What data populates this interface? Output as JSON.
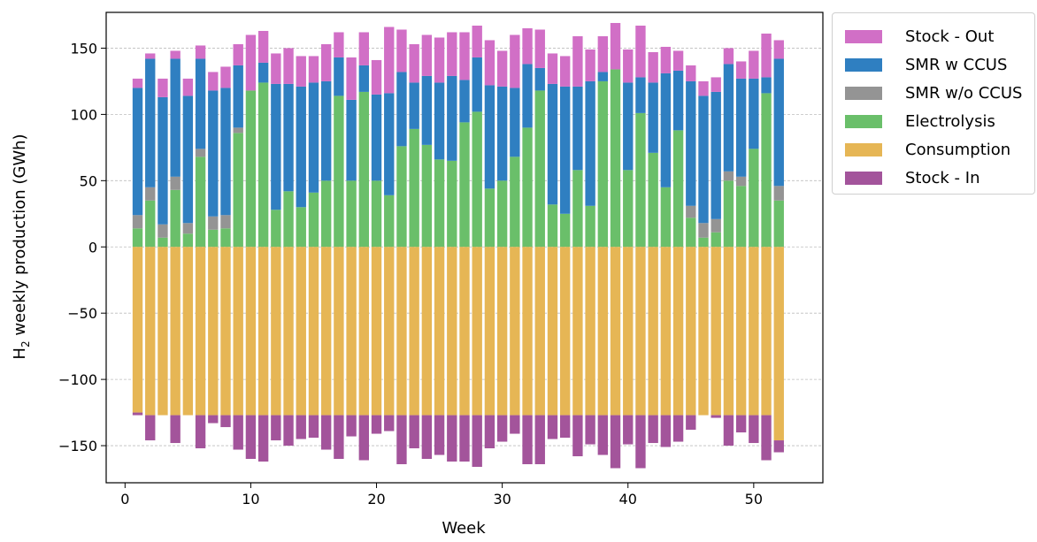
{
  "chart_data": {
    "type": "bar",
    "stacked": true,
    "xlabel": "Week",
    "ylabel_main": "H",
    "ylabel_sub": "2",
    "ylabel_rest": " weekly production (GWh)",
    "xlim": [
      -1.5,
      55.5
    ],
    "ylim": [
      -178,
      177
    ],
    "xticks": [
      0,
      10,
      20,
      30,
      40,
      50
    ],
    "xtick_labels": [
      "0",
      "10",
      "20",
      "30",
      "40",
      "50"
    ],
    "yticks": [
      -150,
      -100,
      -50,
      0,
      50,
      100,
      150
    ],
    "ytick_labels": [
      "−150",
      "−100",
      "−50",
      "0",
      "50",
      "100",
      "150"
    ],
    "grid_y": true,
    "legend_position": "outside-top-right",
    "x": [
      1,
      2,
      3,
      4,
      5,
      6,
      7,
      8,
      9,
      10,
      11,
      12,
      13,
      14,
      15,
      16,
      17,
      18,
      19,
      20,
      21,
      22,
      23,
      24,
      25,
      26,
      27,
      28,
      29,
      30,
      31,
      32,
      33,
      34,
      35,
      36,
      37,
      38,
      39,
      40,
      41,
      42,
      43,
      44,
      45,
      46,
      47,
      48,
      49,
      50,
      51,
      52
    ],
    "series": [
      {
        "name": "Electrolysis",
        "color": "#6abf6a",
        "values": [
          14,
          35,
          7,
          43,
          10,
          68,
          13,
          14,
          86,
          118,
          124,
          28,
          42,
          30,
          41,
          50,
          114,
          50,
          117,
          50,
          39,
          76,
          89,
          77,
          66,
          65,
          94,
          102,
          44,
          50,
          68,
          90,
          118,
          32,
          25,
          58,
          31,
          125,
          134,
          58,
          101,
          71,
          45,
          88,
          22,
          7,
          11,
          50,
          46,
          74,
          116,
          35
        ]
      },
      {
        "name": "SMR w/o CCUS",
        "color": "#949494",
        "values": [
          10,
          10,
          10,
          10,
          8,
          6,
          10,
          10,
          4,
          0,
          0,
          0,
          0,
          0,
          0,
          0,
          0,
          0,
          0,
          0,
          0,
          0,
          0,
          0,
          0,
          0,
          0,
          0,
          0,
          0,
          0,
          0,
          0,
          0,
          0,
          0,
          0,
          0,
          0,
          0,
          0,
          0,
          0,
          0,
          9,
          11,
          10,
          7,
          7,
          0,
          0,
          11
        ]
      },
      {
        "name": "SMR w CCUS",
        "color": "#2f7fc1",
        "values": [
          96,
          97,
          96,
          89,
          96,
          68,
          95,
          96,
          47,
          0,
          15,
          95,
          81,
          91,
          83,
          75,
          29,
          61,
          20,
          65,
          77,
          56,
          35,
          52,
          58,
          64,
          32,
          41,
          78,
          71,
          52,
          48,
          17,
          91,
          96,
          63,
          94,
          7,
          0,
          66,
          27,
          53,
          86,
          45,
          94,
          96,
          96,
          81,
          74,
          53,
          12,
          96
        ]
      },
      {
        "name": "Stock - Out",
        "color": "#d16fc6",
        "values": [
          7,
          4,
          14,
          6,
          13,
          10,
          14,
          16,
          16,
          42,
          24,
          23,
          27,
          23,
          20,
          28,
          19,
          32,
          25,
          26,
          50,
          32,
          29,
          31,
          34,
          33,
          36,
          24,
          34,
          27,
          40,
          27,
          29,
          23,
          23,
          38,
          24,
          27,
          35,
          25,
          39,
          23,
          20,
          15,
          12,
          11,
          11,
          12,
          13,
          21,
          33,
          14
        ]
      },
      {
        "name": "Consumption",
        "color": "#e6b655",
        "values": [
          -125,
          -127,
          -127,
          -127,
          -127,
          -127,
          -127,
          -127,
          -127,
          -127,
          -127,
          -127,
          -127,
          -127,
          -127,
          -127,
          -127,
          -127,
          -127,
          -127,
          -127,
          -127,
          -127,
          -127,
          -127,
          -127,
          -127,
          -127,
          -127,
          -127,
          -127,
          -127,
          -127,
          -127,
          -127,
          -127,
          -127,
          -127,
          -127,
          -127,
          -127,
          -127,
          -127,
          -127,
          -127,
          -127,
          -127,
          -127,
          -127,
          -127,
          -127,
          -146
        ]
      },
      {
        "name": "Stock - In",
        "color": "#a3549b",
        "values": [
          -2,
          -19,
          0,
          -21,
          0,
          -25,
          -6,
          -9,
          -26,
          -33,
          -35,
          -19,
          -23,
          -18,
          -17,
          -26,
          -33,
          -16,
          -34,
          -14,
          -12,
          -37,
          -25,
          -33,
          -30,
          -35,
          -35,
          -39,
          -25,
          -20,
          -14,
          -37,
          -37,
          -18,
          -17,
          -31,
          -22,
          -30,
          -40,
          -22,
          -40,
          -21,
          -24,
          -20,
          -11,
          0,
          -2,
          -23,
          -13,
          -21,
          -34,
          -9
        ]
      }
    ],
    "legend": [
      {
        "label": "Stock - Out",
        "color": "#d16fc6"
      },
      {
        "label": "SMR w CCUS",
        "color": "#2f7fc1"
      },
      {
        "label": "SMR w/o CCUS",
        "color": "#949494"
      },
      {
        "label": "Electrolysis",
        "color": "#6abf6a"
      },
      {
        "label": "Consumption",
        "color": "#e6b655"
      },
      {
        "label": "Stock - In",
        "color": "#a3549b"
      }
    ]
  }
}
